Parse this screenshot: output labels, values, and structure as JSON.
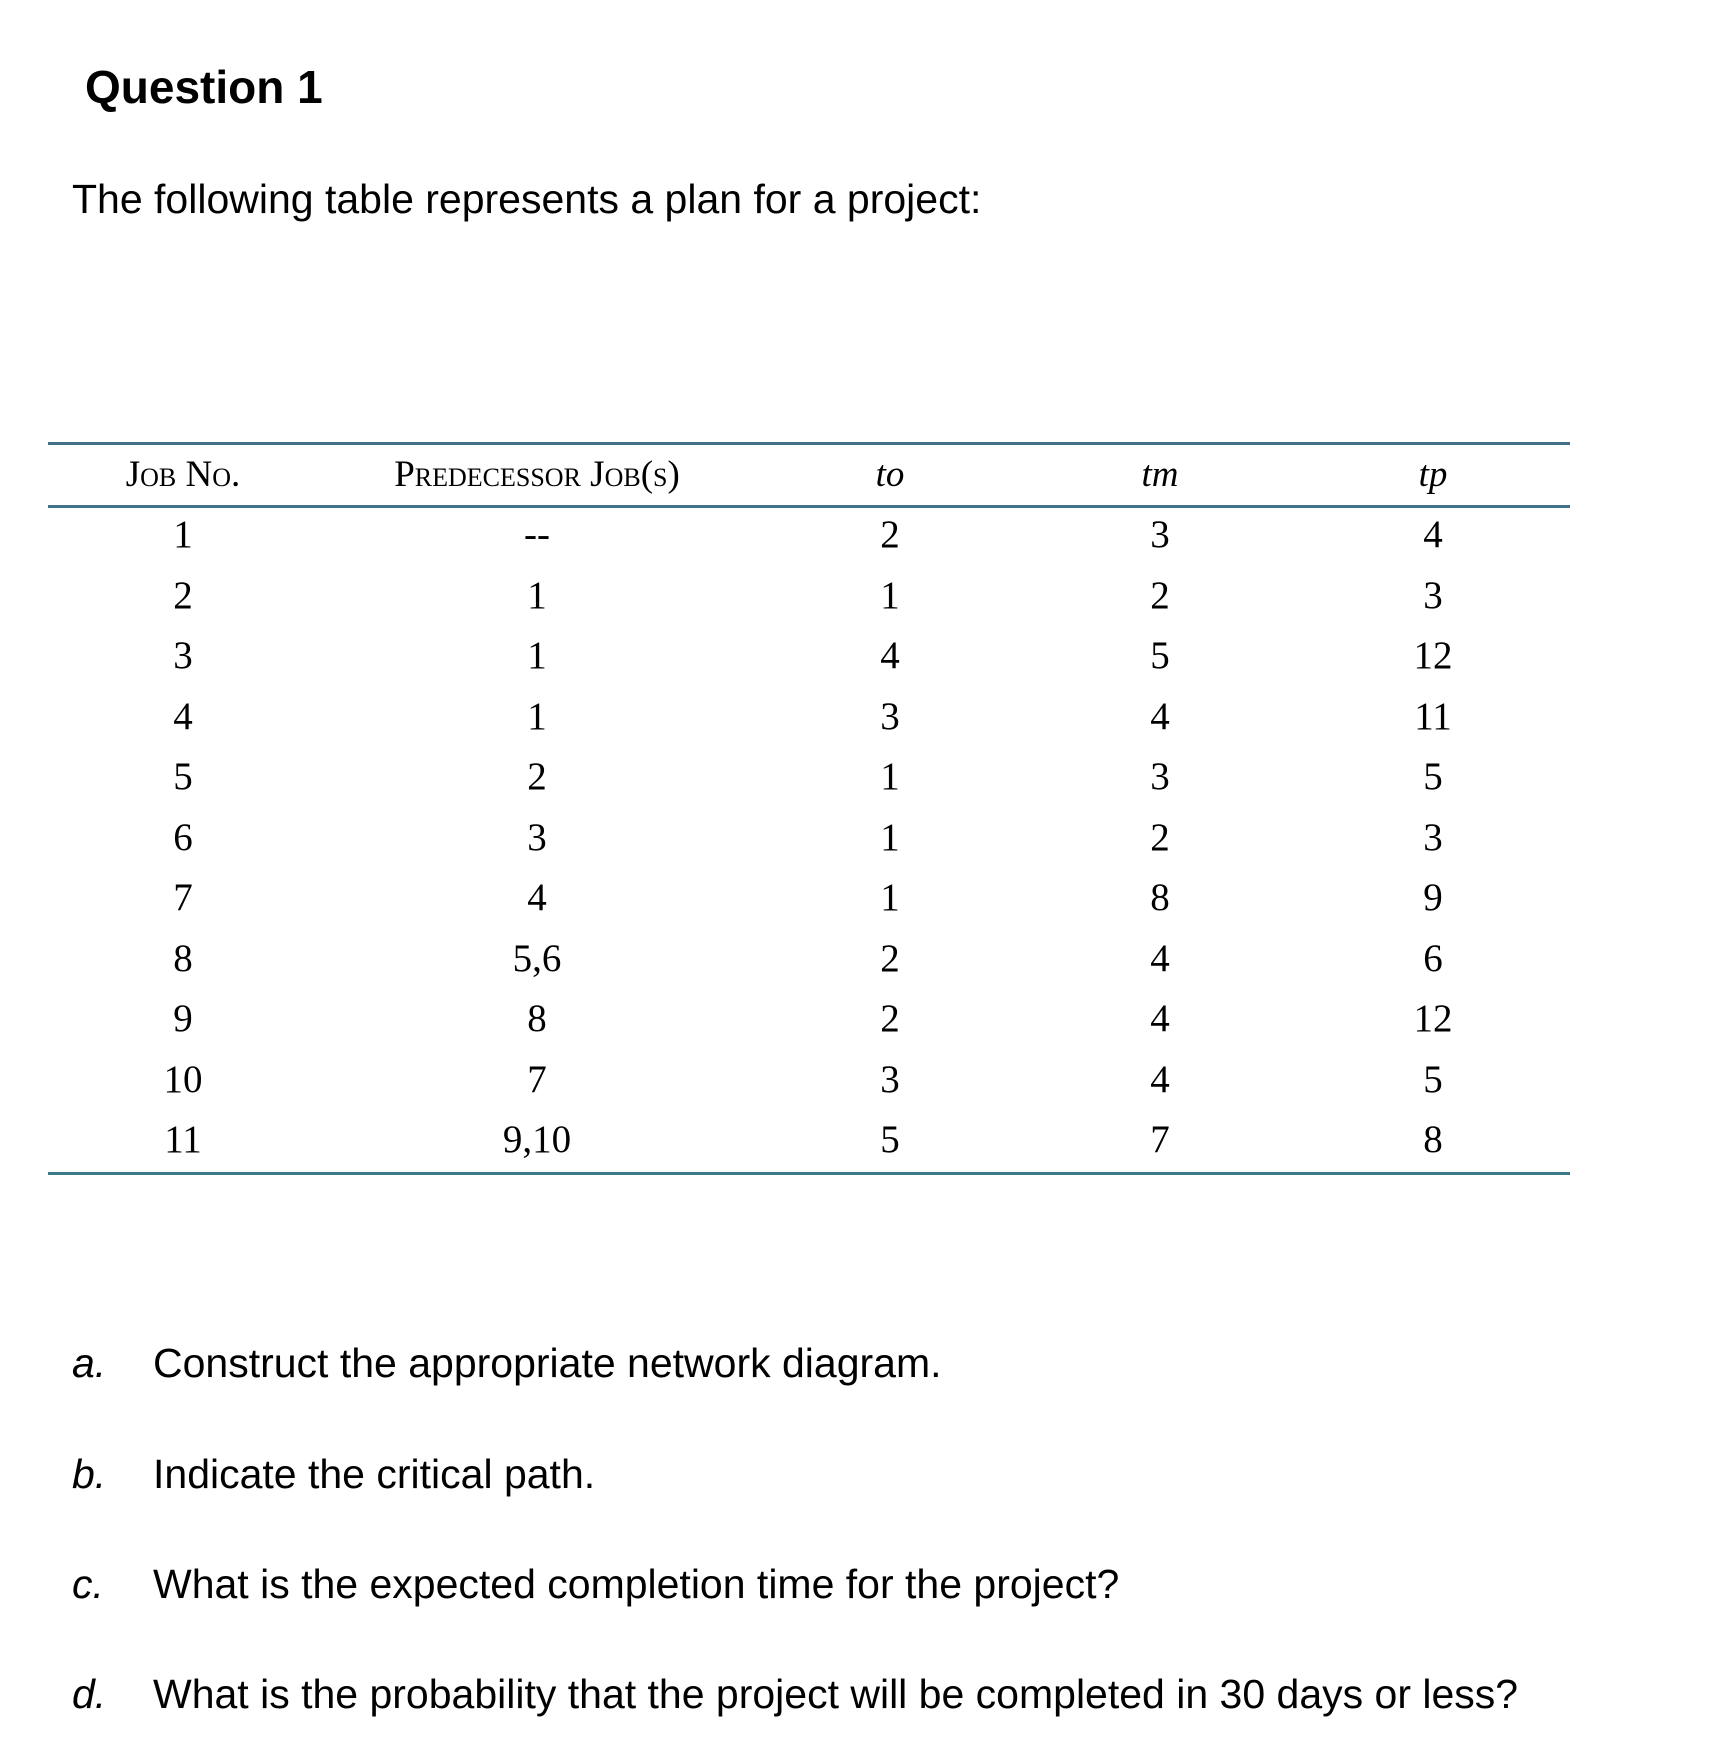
{
  "title": "Question 1",
  "intro": "The following table represents a plan for a project:",
  "table": {
    "headers": [
      "Job No.",
      "Predecessor Job(s)",
      "to",
      "tm",
      "tp"
    ],
    "rows": [
      [
        "1",
        "--",
        "2",
        "3",
        "4"
      ],
      [
        "2",
        "1",
        "1",
        "2",
        "3"
      ],
      [
        "3",
        "1",
        "4",
        "5",
        "12"
      ],
      [
        "4",
        "1",
        "3",
        "4",
        "11"
      ],
      [
        "5",
        "2",
        "1",
        "3",
        "5"
      ],
      [
        "6",
        "3",
        "1",
        "2",
        "3"
      ],
      [
        "7",
        "4",
        "1",
        "8",
        "9"
      ],
      [
        "8",
        "5,6",
        "2",
        "4",
        "6"
      ],
      [
        "9",
        "8",
        "2",
        "4",
        "12"
      ],
      [
        "10",
        "7",
        "3",
        "4",
        "5"
      ],
      [
        "11",
        "9,10",
        "5",
        "7",
        "8"
      ]
    ],
    "rule_color": "#40708c"
  },
  "questions": [
    {
      "label": "a.",
      "text": "Construct the appropriate network diagram."
    },
    {
      "label": "b.",
      "text": "Indicate the critical path."
    },
    {
      "label": "c.",
      "text": "What is the expected completion time for the project?"
    },
    {
      "label": "d.",
      "text": "What is the probability that the project will be completed in 30 days or less?"
    }
  ]
}
